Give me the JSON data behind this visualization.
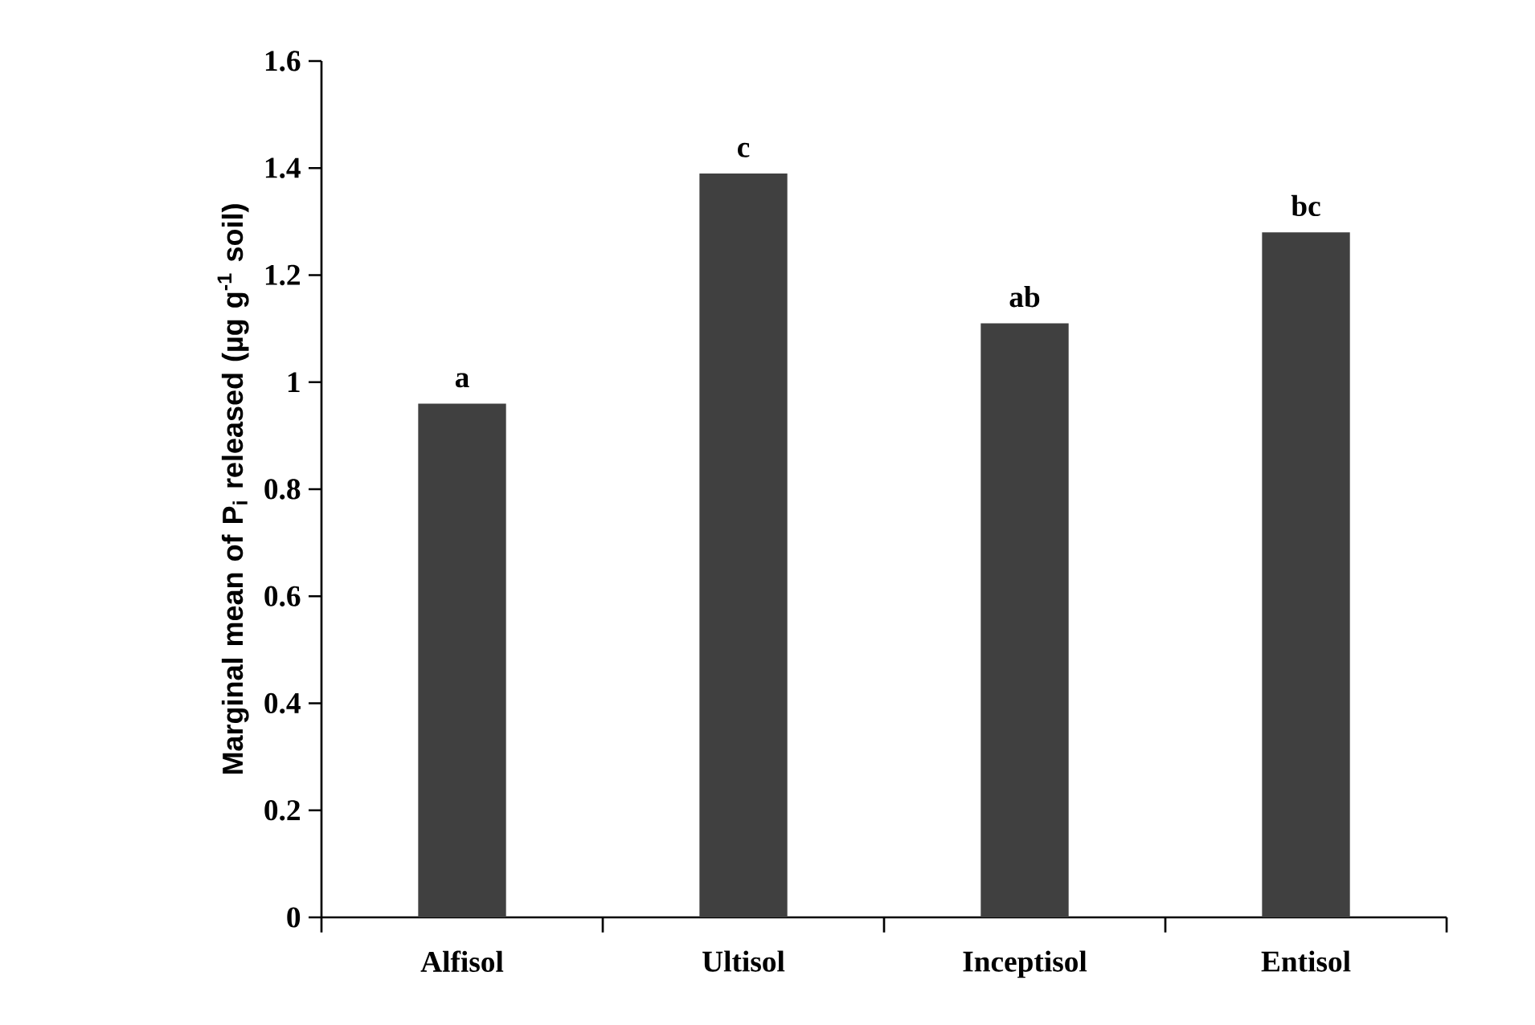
{
  "chart_data": {
    "type": "bar",
    "ylabel": "Marginal mean of P$_{i}$ released (µg g$^{-1}$ soil)",
    "categories": [
      "Alfisol",
      "Ultisol",
      "Inceptisol",
      "Entisol"
    ],
    "values": [
      0.96,
      1.39,
      1.11,
      1.28
    ],
    "color": "#404040",
    "ylim": [
      0,
      1.6
    ],
    "yticks": [
      0,
      0.2,
      0.4,
      0.6,
      0.8,
      1,
      1.2,
      1.4,
      1.6
    ],
    "annotations": [
      {
        "text": "a",
        "x": "Alfisol",
        "y": 0.96
      },
      {
        "text": "c",
        "x": "Ultisol",
        "y": 1.39
      },
      {
        "text": "ab",
        "x": "Inceptisol",
        "y": 1.11
      },
      {
        "text": "bc",
        "x": "Entisol",
        "y": 1.28
      }
    ]
  }
}
